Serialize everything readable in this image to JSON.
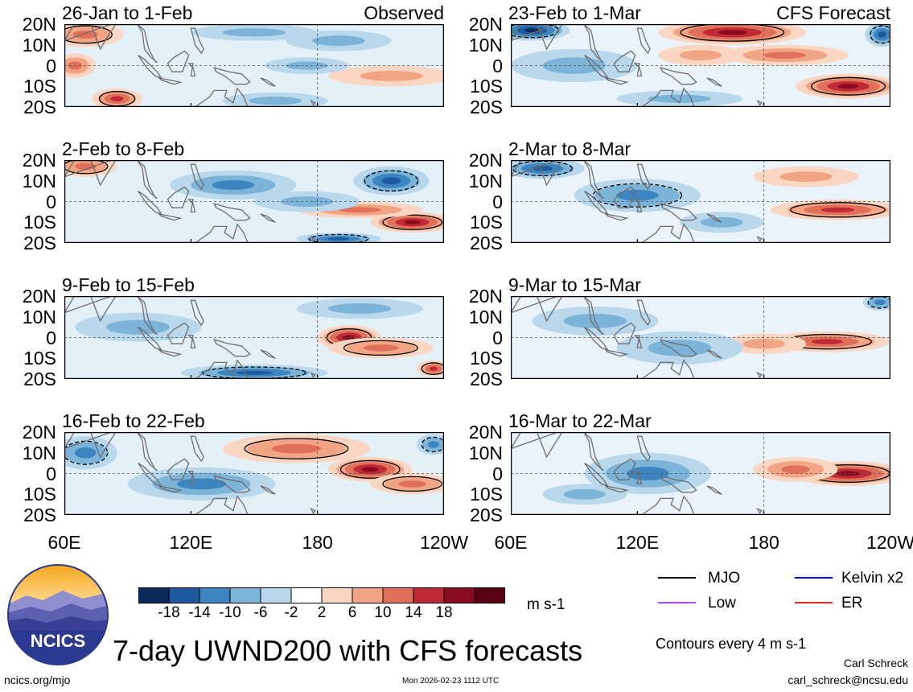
{
  "chart_data": {
    "type": "heatmap",
    "title": "7-day UWND200 with CFS forecasts",
    "variable": "UWND200",
    "units": "m s-1",
    "contour_note": "Contours every 4 m s-1",
    "lon_ticks": [
      "60E",
      "120E",
      "180",
      "120W"
    ],
    "lon_tick_values": [
      60,
      120,
      180,
      240
    ],
    "lat_ticks": [
      "20N",
      "10N",
      "0",
      "10S",
      "20S"
    ],
    "lat_range": [
      -20,
      20
    ],
    "lon_range": [
      60,
      240
    ],
    "colorbar_levels": [
      "-18",
      "-14",
      "-10",
      "-6",
      "-2",
      "2",
      "6",
      "10",
      "14",
      "18"
    ],
    "colorbar_colors": [
      "#0a2a5c",
      "#1f5a9e",
      "#3d85c0",
      "#7bb3d9",
      "#b9d8ec",
      "#ffffff",
      "#fbd7c3",
      "#f2a585",
      "#e0705a",
      "#c02a35",
      "#8a0a22",
      "#5a0015"
    ],
    "panels": [
      {
        "column": "Observed",
        "period": "26-Jan to 1-Feb",
        "label": "Observed",
        "blobs": [
          {
            "lon": 85,
            "lat": -16,
            "rlon": 12,
            "rlat": 5,
            "v": 14
          },
          {
            "lon": 70,
            "lat": 15,
            "rlon": 18,
            "rlat": 6,
            "v": 10
          },
          {
            "lon": 65,
            "lat": 0,
            "rlon": 10,
            "rlat": 6,
            "v": 8
          },
          {
            "lon": 215,
            "lat": -5,
            "rlon": 30,
            "rlat": 5,
            "v": 6
          },
          {
            "lon": 150,
            "lat": 16,
            "rlon": 30,
            "rlat": 4,
            "v": -6
          },
          {
            "lon": 190,
            "lat": 12,
            "rlon": 25,
            "rlat": 5,
            "v": -6
          },
          {
            "lon": 175,
            "lat": 0,
            "rlon": 20,
            "rlat": 4,
            "v": -4
          },
          {
            "lon": 160,
            "lat": -17,
            "rlon": 25,
            "rlat": 4,
            "v": -6
          }
        ]
      },
      {
        "column": "CFS",
        "period": "23-Feb to 1-Mar",
        "label": "CFS Forecast",
        "blobs": [
          {
            "lon": 165,
            "lat": 16,
            "rlon": 35,
            "rlat": 6,
            "v": 18
          },
          {
            "lon": 220,
            "lat": -10,
            "rlon": 25,
            "rlat": 6,
            "v": 18
          },
          {
            "lon": 190,
            "lat": 5,
            "rlon": 30,
            "rlat": 5,
            "v": 8
          },
          {
            "lon": 150,
            "lat": 5,
            "rlon": 20,
            "rlat": 5,
            "v": 6
          },
          {
            "lon": 70,
            "lat": 17,
            "rlon": 18,
            "rlat": 5,
            "v": -18
          },
          {
            "lon": 236,
            "lat": 15,
            "rlon": 8,
            "rlat": 6,
            "v": -14
          },
          {
            "lon": 90,
            "lat": 0,
            "rlon": 30,
            "rlat": 8,
            "v": -4
          },
          {
            "lon": 140,
            "lat": -16,
            "rlon": 30,
            "rlat": 4,
            "v": -4
          }
        ]
      },
      {
        "column": "Observed",
        "period": "2-Feb to 8-Feb",
        "label": "",
        "blobs": [
          {
            "lon": 70,
            "lat": 17,
            "rlon": 15,
            "rlat": 5,
            "v": 10
          },
          {
            "lon": 225,
            "lat": -10,
            "rlon": 20,
            "rlat": 5,
            "v": 18
          },
          {
            "lon": 200,
            "lat": -4,
            "rlon": 30,
            "rlat": 4,
            "v": 8
          },
          {
            "lon": 215,
            "lat": 10,
            "rlon": 18,
            "rlat": 7,
            "v": -14
          },
          {
            "lon": 140,
            "lat": 8,
            "rlon": 30,
            "rlat": 7,
            "v": -8
          },
          {
            "lon": 175,
            "lat": 0,
            "rlon": 25,
            "rlat": 5,
            "v": -6
          },
          {
            "lon": 190,
            "lat": -18,
            "rlon": 20,
            "rlat": 3,
            "v": -14
          }
        ]
      },
      {
        "column": "CFS",
        "period": "2-Mar to 8-Mar",
        "label": "",
        "blobs": [
          {
            "lon": 215,
            "lat": -4,
            "rlon": 32,
            "rlat": 5,
            "v": 14
          },
          {
            "lon": 200,
            "lat": 12,
            "rlon": 25,
            "rlat": 5,
            "v": 6
          },
          {
            "lon": 75,
            "lat": 16,
            "rlon": 20,
            "rlat": 5,
            "v": -14
          },
          {
            "lon": 120,
            "lat": 3,
            "rlon": 30,
            "rlat": 8,
            "v": -10
          },
          {
            "lon": 160,
            "lat": -10,
            "rlon": 20,
            "rlat": 5,
            "v": -4
          }
        ]
      },
      {
        "column": "Observed",
        "period": "9-Feb to 15-Feb",
        "label": "",
        "blobs": [
          {
            "lon": 195,
            "lat": 0,
            "rlon": 15,
            "rlat": 6,
            "v": 18
          },
          {
            "lon": 210,
            "lat": -5,
            "rlon": 25,
            "rlat": 5,
            "v": 10
          },
          {
            "lon": 235,
            "lat": -15,
            "rlon": 8,
            "rlat": 4,
            "v": 14
          },
          {
            "lon": 150,
            "lat": -17,
            "rlon": 35,
            "rlat": 4,
            "v": -14
          },
          {
            "lon": 95,
            "lat": 5,
            "rlon": 30,
            "rlat": 7,
            "v": -6
          },
          {
            "lon": 200,
            "lat": 14,
            "rlon": 30,
            "rlat": 5,
            "v": -4
          }
        ]
      },
      {
        "column": "CFS",
        "period": "9-Mar to 15-Mar",
        "label": "",
        "blobs": [
          {
            "lon": 210,
            "lat": -2,
            "rlon": 30,
            "rlat": 5,
            "v": 14
          },
          {
            "lon": 180,
            "lat": -3,
            "rlon": 20,
            "rlat": 5,
            "v": 6
          },
          {
            "lon": 235,
            "lat": 17,
            "rlon": 8,
            "rlat": 4,
            "v": -10
          },
          {
            "lon": 140,
            "lat": -5,
            "rlon": 30,
            "rlat": 8,
            "v": -6
          },
          {
            "lon": 100,
            "lat": 8,
            "rlon": 30,
            "rlat": 7,
            "v": -4
          }
        ]
      },
      {
        "column": "Observed",
        "period": "16-Feb to 22-Feb",
        "label": "",
        "blobs": [
          {
            "lon": 205,
            "lat": 2,
            "rlon": 20,
            "rlat": 6,
            "v": 18
          },
          {
            "lon": 170,
            "lat": 12,
            "rlon": 35,
            "rlat": 7,
            "v": 10
          },
          {
            "lon": 225,
            "lat": -5,
            "rlon": 20,
            "rlat": 5,
            "v": 10
          },
          {
            "lon": 70,
            "lat": 10,
            "rlon": 15,
            "rlat": 8,
            "v": -10
          },
          {
            "lon": 125,
            "lat": -5,
            "rlon": 35,
            "rlat": 8,
            "v": -8
          },
          {
            "lon": 235,
            "lat": 14,
            "rlon": 8,
            "rlat": 5,
            "v": -10
          }
        ]
      },
      {
        "column": "CFS",
        "period": "16-Mar to 22-Mar",
        "label": "",
        "blobs": [
          {
            "lon": 220,
            "lat": 0,
            "rlon": 28,
            "rlat": 6,
            "v": 18
          },
          {
            "lon": 195,
            "lat": 2,
            "rlon": 20,
            "rlat": 6,
            "v": 8
          },
          {
            "lon": 125,
            "lat": 0,
            "rlon": 30,
            "rlat": 10,
            "v": -8
          },
          {
            "lon": 95,
            "lat": -10,
            "rlon": 20,
            "rlat": 5,
            "v": -4
          }
        ]
      }
    ],
    "legend": [
      {
        "label": "MJO",
        "color": "#000000"
      },
      {
        "label": "Kelvin x2",
        "color": "#0000ff"
      },
      {
        "label": "Low",
        "color": "#a64dff"
      },
      {
        "label": "ER",
        "color": "#e0302a"
      }
    ]
  },
  "footer": {
    "logo_text": "NCICS",
    "website": "ncics.org/mjo",
    "timestamp": "Mon 2026-02-23 1112 UTC",
    "author": "Carl Schreck",
    "email": "carl_schreck@ncsu.edu"
  }
}
